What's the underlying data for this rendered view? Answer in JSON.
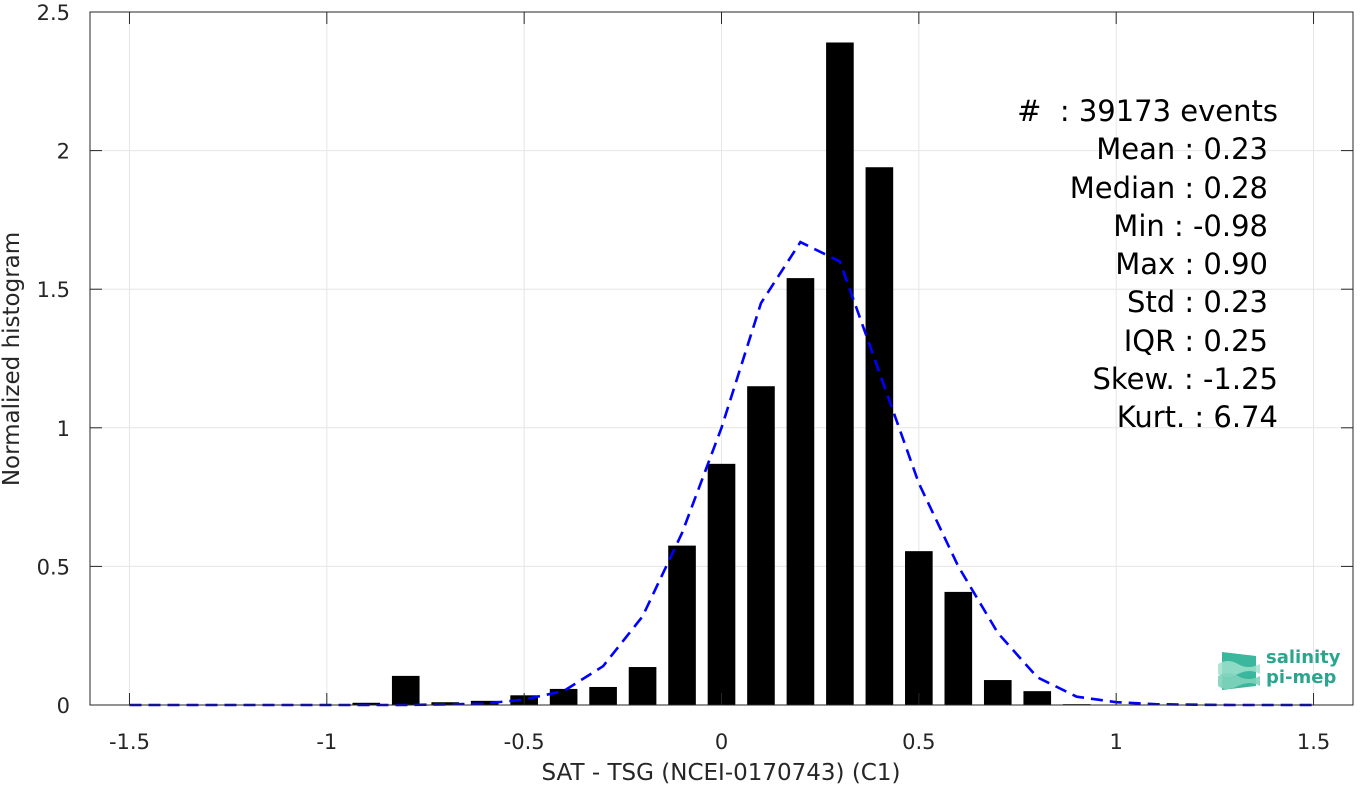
{
  "chart_data": {
    "type": "bar",
    "xlabel": "SAT - TSG (NCEI-0170743) (C1)",
    "ylabel": "Normalized histogram",
    "xlim": [
      -1.6,
      1.6
    ],
    "ylim": [
      0,
      2.5
    ],
    "xticks": [
      -1.5,
      -1,
      -0.5,
      0,
      0.5,
      1,
      1.5
    ],
    "xtick_labels": [
      "-1.5",
      "-1",
      "-0.5",
      "0",
      "0.5",
      "1",
      "1.5"
    ],
    "yticks": [
      0,
      0.5,
      1,
      1.5,
      2,
      2.5
    ],
    "ytick_labels": [
      "0",
      "0.5",
      "1",
      "1.5",
      "2",
      "2.5"
    ],
    "grid": true,
    "bar_color": "#000000",
    "bar_width": 0.07,
    "bars": {
      "x": [
        -0.9,
        -0.8,
        -0.7,
        -0.6,
        -0.5,
        -0.4,
        -0.3,
        -0.2,
        -0.1,
        0.0,
        0.1,
        0.2,
        0.3,
        0.4,
        0.5,
        0.6,
        0.7,
        0.8,
        0.9
      ],
      "values": [
        0.008,
        0.105,
        0.01,
        0.015,
        0.035,
        0.058,
        0.065,
        0.137,
        0.575,
        0.87,
        1.15,
        1.54,
        2.39,
        1.94,
        0.555,
        0.408,
        0.09,
        0.05,
        0.003
      ]
    },
    "fit_curve": {
      "style": "dashed",
      "color": "#0000ff",
      "x": [
        -1.5,
        -1.4,
        -1.3,
        -1.2,
        -1.1,
        -1.0,
        -0.9,
        -0.8,
        -0.7,
        -0.6,
        -0.5,
        -0.4,
        -0.3,
        -0.2,
        -0.1,
        0.0,
        0.1,
        0.2,
        0.3,
        0.4,
        0.5,
        0.6,
        0.7,
        0.8,
        0.9,
        1.0,
        1.1,
        1.2,
        1.3,
        1.4,
        1.5
      ],
      "y": [
        0,
        0,
        0,
        0,
        0,
        0,
        0,
        0,
        0.002,
        0.005,
        0.02,
        0.05,
        0.14,
        0.32,
        0.62,
        1.0,
        1.45,
        1.67,
        1.6,
        1.2,
        0.8,
        0.5,
        0.26,
        0.1,
        0.03,
        0.01,
        0.003,
        0.001,
        0,
        0,
        0
      ]
    }
  },
  "stats": {
    "count": "#  : 39173 events",
    "mean": "Mean : 0.23",
    "median": "Median : 0.28",
    "min": "Min : -0.98",
    "max": "Max : 0.90",
    "std": "Std : 0.23",
    "iqr": "IQR : 0.25",
    "skew": "Skew. : -1.25",
    "kurt": "Kurt. : 6.74"
  },
  "logo": {
    "line1": "salinity",
    "line2": "pi-mep",
    "icon": "salinity-wave-icon",
    "color": "#2aa58e"
  }
}
